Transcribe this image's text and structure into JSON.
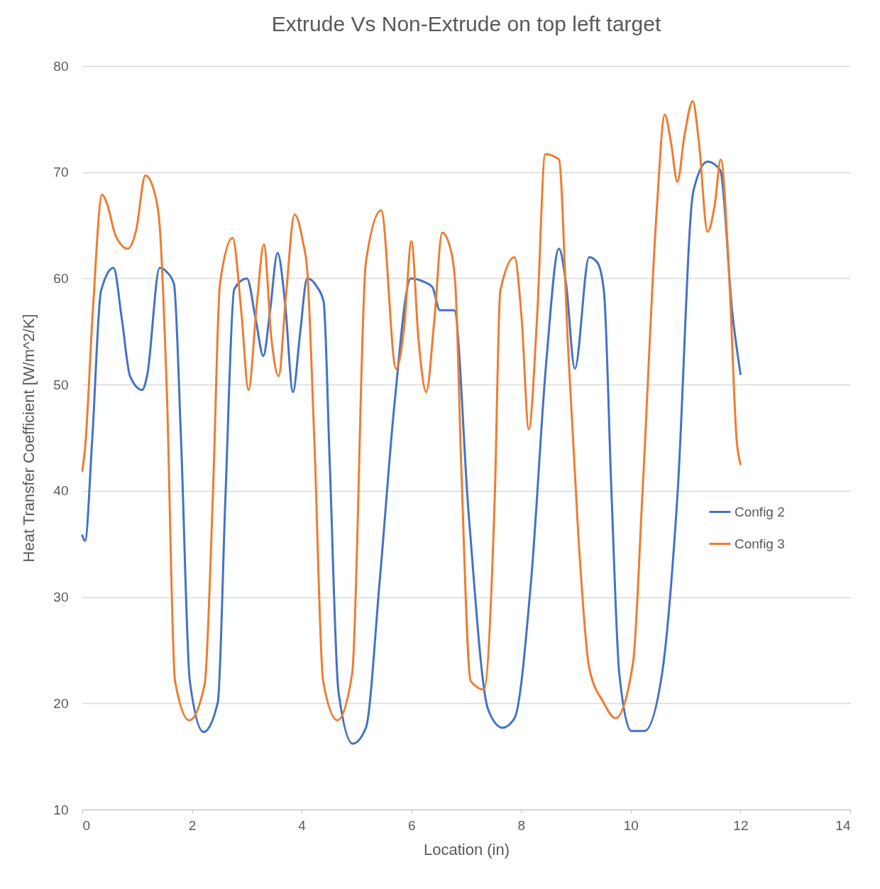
{
  "chart_data": {
    "type": "line",
    "title": "Extrude Vs Non-Extrude on top left target",
    "xlabel": "Location (in)",
    "ylabel": "Heat Transfer Coefficient [W/m^2/K]",
    "xlim": [
      0,
      14
    ],
    "xticks": [
      0,
      2,
      4,
      6,
      8,
      10,
      12,
      14
    ],
    "ylim": [
      10,
      80
    ],
    "yticks": [
      10,
      20,
      30,
      40,
      50,
      60,
      70,
      80
    ],
    "grid": "y",
    "legend": "right",
    "marker": "none",
    "line_style": "solid",
    "series": [
      {
        "name": "Config 2",
        "color": "#4472c4",
        "x": [
          0,
          0.05,
          0.18,
          0.34,
          0.57,
          0.72,
          0.87,
          1.09,
          1.18,
          1.41,
          1.54,
          1.67,
          1.8,
          1.96,
          2.21,
          2.47,
          2.61,
          2.77,
          3.0,
          3.16,
          3.3,
          3.42,
          3.56,
          3.7,
          3.84,
          3.97,
          4.1,
          4.28,
          4.4,
          4.51,
          4.67,
          4.93,
          5.17,
          5.42,
          5.69,
          5.99,
          6.22,
          6.38,
          6.52,
          6.78,
          7.04,
          7.4,
          7.66,
          7.88,
          8.18,
          8.46,
          8.69,
          8.82,
          8.98,
          9.24,
          9.39,
          9.51,
          9.65,
          9.79,
          10.01,
          10.25,
          10.57,
          10.85,
          11.14,
          11.4,
          11.63,
          11.85,
          12.0
        ],
        "values": [
          35.8,
          35.3,
          44.8,
          58.8,
          61.0,
          56.2,
          50.8,
          49.5,
          50.8,
          61.0,
          60.6,
          59.5,
          44.8,
          22.1,
          17.3,
          20.1,
          39.5,
          59.0,
          60.0,
          56.2,
          52.7,
          56.8,
          62.4,
          57.5,
          49.3,
          54.8,
          60.0,
          59.2,
          57.8,
          42.8,
          21.1,
          16.2,
          17.7,
          31.4,
          48.1,
          60.0,
          59.7,
          59.2,
          57.0,
          57.0,
          38.1,
          19.4,
          17.7,
          18.6,
          31.4,
          52.2,
          62.8,
          59.5,
          51.5,
          62.0,
          61.5,
          58.8,
          39.5,
          22.8,
          17.4,
          17.4,
          22.8,
          39.5,
          68.2,
          71.0,
          70.2,
          56.8,
          51.0
        ]
      },
      {
        "name": "Config 3",
        "color": "#ed7d31",
        "x": [
          0,
          0.05,
          0.19,
          0.36,
          0.44,
          0.61,
          0.83,
          0.98,
          1.15,
          1.31,
          1.41,
          1.54,
          1.69,
          1.95,
          2.23,
          2.38,
          2.51,
          2.74,
          2.9,
          3.03,
          3.18,
          3.31,
          3.45,
          3.58,
          3.71,
          3.87,
          4.02,
          4.1,
          4.23,
          4.39,
          4.65,
          4.92,
          5.17,
          5.45,
          5.72,
          5.87,
          6.0,
          6.13,
          6.27,
          6.42,
          6.56,
          6.69,
          6.8,
          6.91,
          7.08,
          7.32,
          7.52,
          7.62,
          7.88,
          8.01,
          8.14,
          8.29,
          8.44,
          8.69,
          8.85,
          9.04,
          9.24,
          9.5,
          9.72,
          10.04,
          10.21,
          10.47,
          10.62,
          10.73,
          10.85,
          10.98,
          11.13,
          11.24,
          11.4,
          11.53,
          11.64,
          11.8,
          11.93,
          12.0
        ],
        "values": [
          41.9,
          44.0,
          56.8,
          67.9,
          67.2,
          64.0,
          62.8,
          64.5,
          69.7,
          68.2,
          65.0,
          49.5,
          22.1,
          18.4,
          21.8,
          39.5,
          59.5,
          63.8,
          56.8,
          49.5,
          57.5,
          63.2,
          54.2,
          50.8,
          58.2,
          66.0,
          63.5,
          60.8,
          44.8,
          22.1,
          18.4,
          22.8,
          61.5,
          66.4,
          51.5,
          55.5,
          63.5,
          54.2,
          49.3,
          56.2,
          64.3,
          63.2,
          59.5,
          42.1,
          22.1,
          21.3,
          39.5,
          58.8,
          62.0,
          56.2,
          45.8,
          56.2,
          71.7,
          71.2,
          54.2,
          36.1,
          23.4,
          20.1,
          18.6,
          23.8,
          39.5,
          66.2,
          75.4,
          72.9,
          69.1,
          73.5,
          76.7,
          72.9,
          64.4,
          66.9,
          71.2,
          59.5,
          44.8,
          42.5
        ]
      }
    ]
  }
}
